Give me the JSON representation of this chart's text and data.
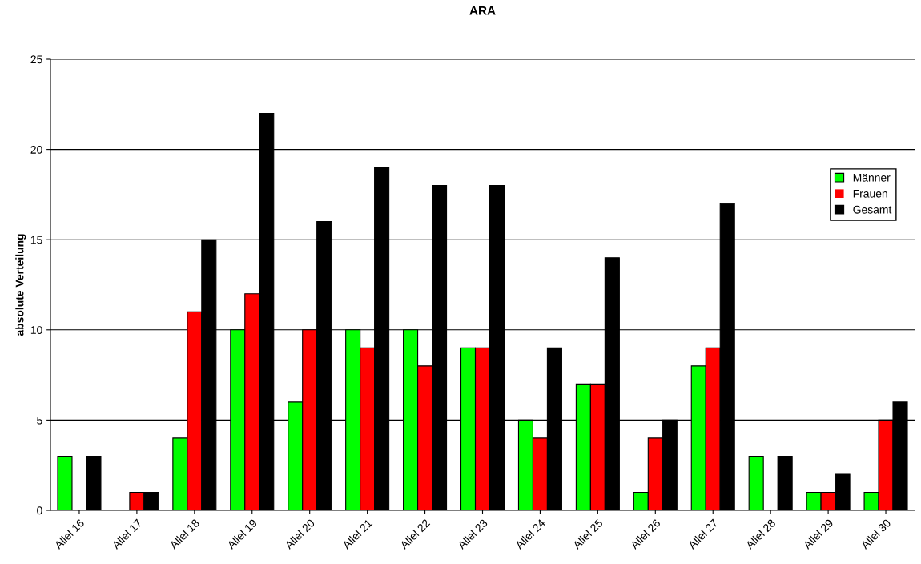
{
  "chart_data": {
    "type": "bar",
    "title": "ARA",
    "ylabel": "absolute Verteilung",
    "categories": [
      "Allel 16",
      "Allel 17",
      "Allel 18",
      "Allel 19",
      "Allel 20",
      "Allel 21",
      "Allel 22",
      "Allel 23",
      "Allel 24",
      "Allel 25",
      "Allel 26",
      "Allel 27",
      "Allel 28",
      "Allel 29",
      "Allel 30"
    ],
    "series": [
      {
        "name": "Männer",
        "color": "#00ff00",
        "values": [
          3,
          0,
          4,
          10,
          6,
          10,
          10,
          9,
          5,
          7,
          1,
          8,
          3,
          1,
          1
        ]
      },
      {
        "name": "Frauen",
        "color": "#ff0000",
        "values": [
          0,
          1,
          11,
          12,
          10,
          9,
          8,
          9,
          4,
          7,
          4,
          9,
          0,
          1,
          5
        ]
      },
      {
        "name": "Gesamt",
        "color": "#000000",
        "values": [
          3,
          1,
          15,
          22,
          16,
          19,
          18,
          18,
          9,
          14,
          5,
          17,
          3,
          2,
          6
        ]
      }
    ],
    "ylim": [
      0,
      25
    ],
    "yticks": [
      0,
      5,
      10,
      15,
      20,
      25
    ],
    "grid": "y",
    "legend": "right"
  }
}
